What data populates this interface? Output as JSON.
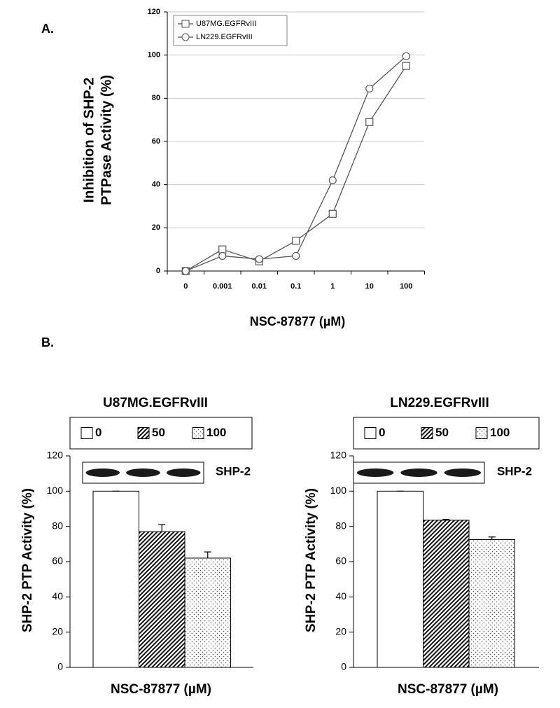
{
  "chart_data": [
    {
      "type": "line",
      "panel_label": "A.",
      "y_label": [
        "Inhibition of SHP-2",
        "PTPase Activity (%)"
      ],
      "x_label": "NSC-87877 (µM)",
      "categories": [
        "0",
        "0.001",
        "0.01",
        "0.1",
        "1",
        "10",
        "100"
      ],
      "ylim": [
        0,
        120
      ],
      "yticks": [
        0,
        20,
        40,
        60,
        80,
        100,
        120
      ],
      "grid": true,
      "series": [
        {
          "name": "U87MG.EGFRvIII",
          "color": "#555555",
          "marker": "square",
          "values": [
            0,
            10,
            4.5,
            14,
            26.5,
            69,
            95
          ]
        },
        {
          "name": "LN229.EGFRvIII",
          "color": "#555555",
          "marker": "circle",
          "values": [
            0,
            7,
            5.5,
            7,
            42,
            84.5,
            99.5
          ]
        }
      ]
    },
    {
      "type": "bar",
      "panel_label": "B.",
      "title": "U87MG.EGFRvIII",
      "y_label": "SHP-2 PTP Activity (%)",
      "x_label": "NSC-87877 (µM)",
      "annotation": "SHP-2",
      "ylim": [
        0,
        120
      ],
      "yticks": [
        0,
        20,
        40,
        60,
        80,
        100,
        120
      ],
      "series": [
        {
          "name": "0",
          "color": "#ffffff",
          "pattern": "solid",
          "values": [
            100
          ],
          "errors": [
            0
          ]
        },
        {
          "name": "50",
          "color": "#ffffff",
          "pattern": "hatch",
          "values": [
            77
          ],
          "errors": [
            4
          ]
        },
        {
          "name": "100",
          "color": "#ffffff",
          "pattern": "dots",
          "values": [
            62
          ],
          "errors": [
            3.5
          ]
        }
      ]
    },
    {
      "type": "bar",
      "title": "LN229.EGFRvIII",
      "y_label": "SHP-2 PTP Activity (%)",
      "x_label": "NSC-87877 (µM)",
      "annotation": "SHP-2",
      "ylim": [
        0,
        120
      ],
      "yticks": [
        0,
        20,
        40,
        60,
        80,
        100,
        120
      ],
      "series": [
        {
          "name": "0",
          "color": "#ffffff",
          "pattern": "solid",
          "values": [
            100
          ],
          "errors": [
            0
          ]
        },
        {
          "name": "50",
          "color": "#ffffff",
          "pattern": "hatch",
          "values": [
            83.5
          ],
          "errors": [
            0.5
          ]
        },
        {
          "name": "100",
          "color": "#ffffff",
          "pattern": "dots",
          "values": [
            72.5
          ],
          "errors": [
            1.5
          ]
        }
      ]
    }
  ]
}
